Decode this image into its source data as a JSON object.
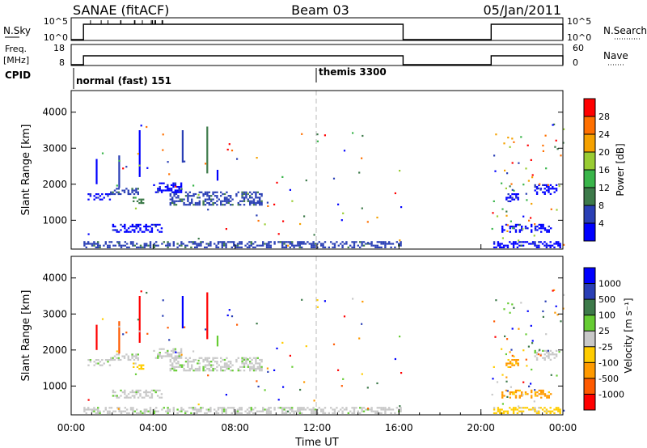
{
  "header": {
    "left_title": "SANAE (fitACF)",
    "center_title": "Beam 03",
    "right_title": "05/Jan/2011"
  },
  "status_panels": {
    "nsky": {
      "label": "N.Sky",
      "ticks_left": [
        "10^5",
        "10^0"
      ],
      "right_label": "N.Search",
      "ticks_right": [
        "10^5",
        "10^0"
      ]
    },
    "freq": {
      "label_line1": "Freq.",
      "label_line2": "[MHz]",
      "ticks_left": [
        "18",
        "8"
      ],
      "right_label": "Nave",
      "ticks_right": [
        "60",
        "0"
      ]
    },
    "cpid": {
      "label": "CPID",
      "modes": [
        "normal (fast) 151",
        "themis 3300"
      ]
    }
  },
  "colors": {
    "power": [
      "#0000ff",
      "#2a3fb5",
      "#3d7a4a",
      "#39b54a",
      "#99cc33",
      "#f5a100",
      "#ff7000",
      "#ff0000"
    ],
    "velocity": [
      "#ff0000",
      "#ff5a00",
      "#ff9a00",
      "#ffcc00",
      "#c8c8c8",
      "#66cc33",
      "#3d7a4a",
      "#2a3fb5",
      "#0000ff"
    ]
  },
  "chart_data": [
    {
      "type": "heatmap",
      "name": "power",
      "xlabel": "",
      "ylabel": "Slant Range [km]",
      "ylim": [
        200,
        4600
      ],
      "xlim": [
        0,
        24
      ],
      "yticks": [
        "1000",
        "2000",
        "3000",
        "4000"
      ],
      "colorbar_label": "Power [dB]",
      "colorbar_ticks": [
        "4",
        "8",
        "12",
        "16",
        "20",
        "24",
        "28"
      ],
      "patches": [
        {
          "t0": 0.8,
          "t1": 2.0,
          "r0": 1550,
          "r1": 1750,
          "level": 0
        },
        {
          "t0": 1.8,
          "t1": 3.4,
          "r0": 1700,
          "r1": 1900,
          "level": 1
        },
        {
          "t0": 3.0,
          "t1": 3.6,
          "r0": 1450,
          "r1": 1650,
          "level": 2
        },
        {
          "t0": 2.0,
          "t1": 4.5,
          "r0": 650,
          "r1": 900,
          "level": 0
        },
        {
          "t0": 4.8,
          "t1": 9.4,
          "r0": 1400,
          "r1": 1800,
          "level": 1
        },
        {
          "t0": 4.0,
          "t1": 5.5,
          "r0": 1750,
          "r1": 2050,
          "level": 0
        },
        {
          "t0": 0.6,
          "t1": 16.2,
          "r0": 200,
          "r1": 420,
          "level": 1
        },
        {
          "t0": 20.6,
          "t1": 24.0,
          "r0": 200,
          "r1": 420,
          "level": 0
        },
        {
          "t0": 21.2,
          "t1": 21.9,
          "r0": 1500,
          "r1": 1750,
          "level": 0
        },
        {
          "t0": 22.6,
          "t1": 23.8,
          "r0": 1700,
          "r1": 2000,
          "level": 0
        },
        {
          "t0": 21.0,
          "t1": 23.5,
          "r0": 650,
          "r1": 900,
          "level": 0
        }
      ],
      "streaks": [
        {
          "t": 1.2,
          "r0": 2000,
          "r1": 2700,
          "level": 0
        },
        {
          "t": 2.3,
          "r0": 1900,
          "r1": 2800,
          "level": 1
        },
        {
          "t": 3.3,
          "r0": 2200,
          "r1": 3500,
          "level": 0
        },
        {
          "t": 5.4,
          "r0": 2600,
          "r1": 3500,
          "level": 1
        },
        {
          "t": 6.6,
          "r0": 2300,
          "r1": 3600,
          "level": 2
        },
        {
          "t": 7.1,
          "r0": 2100,
          "r1": 2400,
          "level": 0
        }
      ],
      "scatter_seed": 7
    },
    {
      "type": "heatmap",
      "name": "velocity",
      "xlabel": "Time UT",
      "ylabel": "Slant Range [km]",
      "ylim": [
        200,
        4600
      ],
      "xlim": [
        0,
        24
      ],
      "xticks": [
        "00:00",
        "04:00",
        "08:00",
        "12:00",
        "16:00",
        "20:00",
        "00:00"
      ],
      "yticks": [
        "1000",
        "2000",
        "3000",
        "4000"
      ],
      "colorbar_label": "Velocity [m s⁻¹]",
      "colorbar_ticks": [
        "-1000",
        "-500",
        "-100",
        "-25",
        "25",
        "100",
        "500",
        "1000"
      ],
      "patches": [
        {
          "t0": 0.8,
          "t1": 2.0,
          "r0": 1550,
          "r1": 1750,
          "level": 4
        },
        {
          "t0": 1.8,
          "t1": 3.4,
          "r0": 1700,
          "r1": 1900,
          "level": 4
        },
        {
          "t0": 3.0,
          "t1": 3.6,
          "r0": 1450,
          "r1": 1650,
          "level": 3
        },
        {
          "t0": 2.0,
          "t1": 4.5,
          "r0": 650,
          "r1": 900,
          "level": 4
        },
        {
          "t0": 4.8,
          "t1": 9.4,
          "r0": 1400,
          "r1": 1800,
          "level": 4
        },
        {
          "t0": 4.0,
          "t1": 5.5,
          "r0": 1750,
          "r1": 2050,
          "level": 4
        },
        {
          "t0": 0.6,
          "t1": 16.2,
          "r0": 200,
          "r1": 420,
          "level": 4
        },
        {
          "t0": 20.6,
          "t1": 24.0,
          "r0": 200,
          "r1": 420,
          "level": 3
        },
        {
          "t0": 21.2,
          "t1": 21.9,
          "r0": 1500,
          "r1": 1750,
          "level": 2
        },
        {
          "t0": 22.6,
          "t1": 23.8,
          "r0": 1700,
          "r1": 2000,
          "level": 4
        },
        {
          "t0": 21.0,
          "t1": 23.5,
          "r0": 650,
          "r1": 900,
          "level": 2
        }
      ],
      "streaks": [
        {
          "t": 1.2,
          "r0": 2000,
          "r1": 2700,
          "level": 0
        },
        {
          "t": 2.3,
          "r0": 1900,
          "r1": 2800,
          "level": 1
        },
        {
          "t": 3.3,
          "r0": 2200,
          "r1": 3500,
          "level": 0
        },
        {
          "t": 5.4,
          "r0": 2600,
          "r1": 3500,
          "level": 8
        },
        {
          "t": 6.6,
          "r0": 2300,
          "r1": 3600,
          "level": 0
        },
        {
          "t": 7.1,
          "r0": 2100,
          "r1": 2400,
          "level": 5
        }
      ],
      "scatter_seed": 7
    }
  ],
  "coverage": {
    "segments": [
      [
        0.6,
        16.2
      ],
      [
        20.5,
        24.0
      ]
    ],
    "mode_switch_time": 12.0
  }
}
